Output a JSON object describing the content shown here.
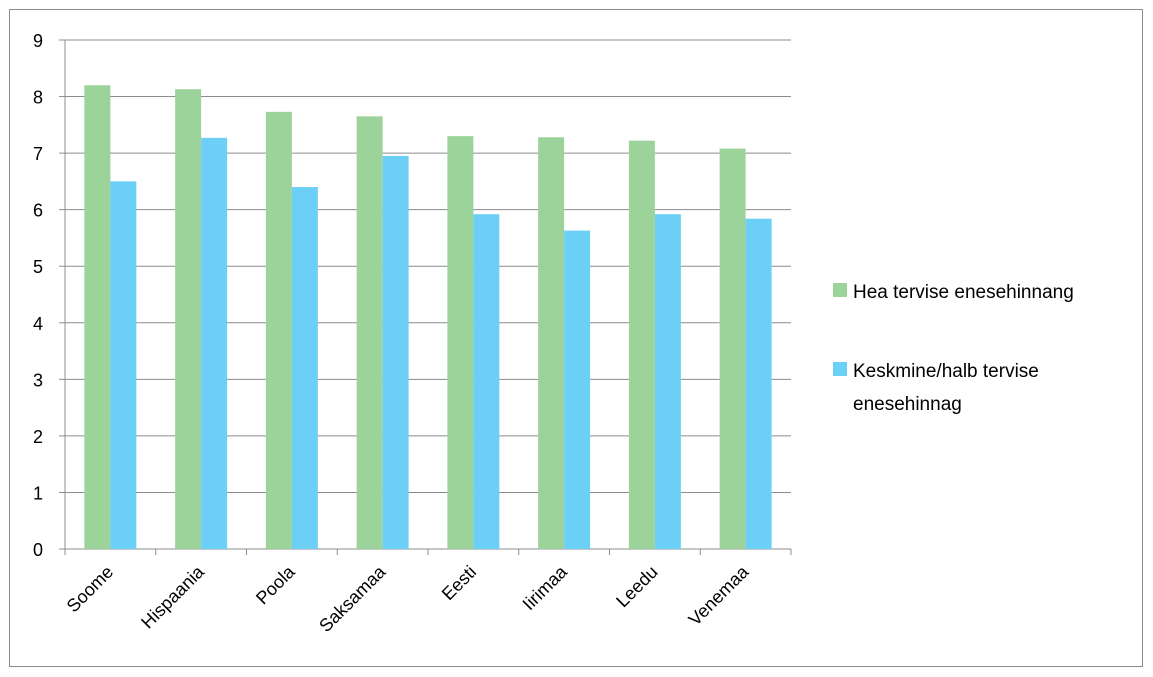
{
  "chart_data": {
    "type": "bar",
    "categories": [
      "Soome",
      "Hispaania",
      "Poola",
      "Saksamaa",
      "Eesti",
      "Iirimaa",
      "Leedu",
      "Venemaa"
    ],
    "series": [
      {
        "name": "Hea tervise enesehinnang",
        "color": "#9bd39b",
        "values": [
          8.2,
          8.13,
          7.73,
          7.65,
          7.3,
          7.28,
          7.22,
          7.08
        ]
      },
      {
        "name": "Keskmine/halb tervise enesehinnag",
        "color": "#6ccff6",
        "values": [
          6.5,
          7.27,
          6.4,
          6.95,
          5.92,
          5.63,
          5.92,
          5.84
        ]
      }
    ],
    "legend": {
      "position": "right",
      "items": [
        {
          "lines": [
            "Hea tervise enesehinnang"
          ]
        },
        {
          "lines": [
            "Keskmine/halb tervise",
            "enesehinnag"
          ]
        }
      ]
    },
    "ylim": [
      0,
      9
    ],
    "yticks": [
      0,
      1,
      2,
      3,
      4,
      5,
      6,
      7,
      8,
      9
    ],
    "grid": true,
    "title": "",
    "xlabel": "",
    "ylabel": ""
  }
}
